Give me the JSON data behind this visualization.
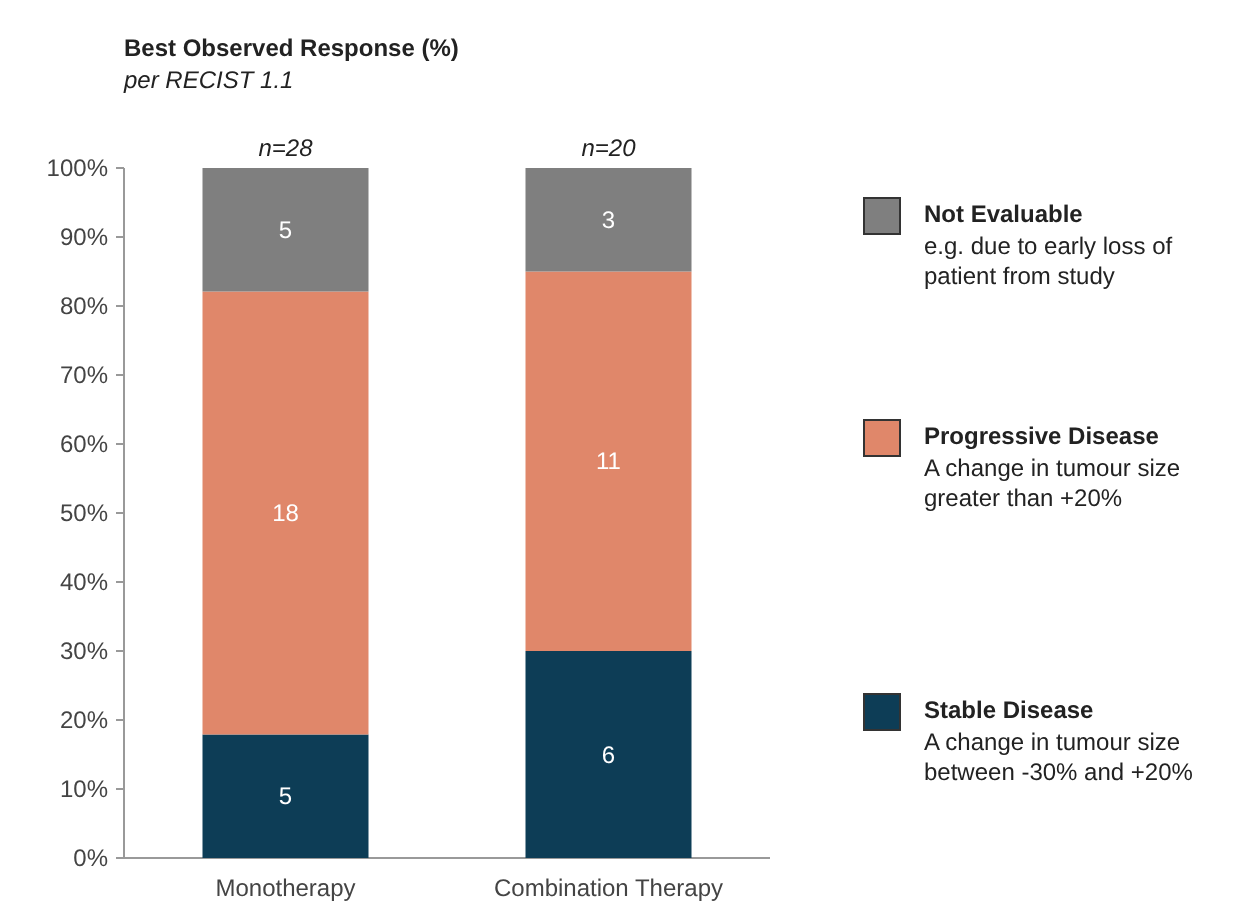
{
  "chart_data": {
    "type": "bar",
    "title": "Best Observed Response (%)",
    "subtitle": "per RECIST 1.1",
    "categories": [
      "Monotherapy",
      "Combination Therapy"
    ],
    "stacked": true,
    "series": [
      {
        "name": "Stable Disease",
        "color": "#0d3d56",
        "values": [
          17.9,
          30
        ]
      },
      {
        "name": "Progressive Disease",
        "color": "#e0876a",
        "values": [
          64.2,
          55
        ]
      },
      {
        "name": "Not Evaluable",
        "color": "#7f7f7f",
        "values": [
          17.9,
          15
        ]
      }
    ],
    "ylim": [
      0,
      100
    ],
    "yticks": [
      {
        "value": 0,
        "label": "0%"
      },
      {
        "value": 10,
        "label": "10%"
      },
      {
        "value": 20,
        "label": "20%"
      },
      {
        "value": 30,
        "label": "30%"
      },
      {
        "value": 40,
        "label": "40%"
      },
      {
        "value": 50,
        "label": "50%"
      },
      {
        "value": 60,
        "label": "60%"
      },
      {
        "value": 70,
        "label": "70%"
      },
      {
        "value": 80,
        "label": "80%"
      },
      {
        "value": 90,
        "label": "90%"
      },
      {
        "value": 100,
        "label": "100%"
      }
    ],
    "legend": "right",
    "annotations": [
      "A change in tumour size between -30% and +20%",
      "A change in tumour size greater than +20%",
      "e.g. due to early loss of patient from study",
      "5",
      "6",
      "18",
      "11",
      "5",
      "3",
      "n=28",
      "n=20"
    ]
  }
}
